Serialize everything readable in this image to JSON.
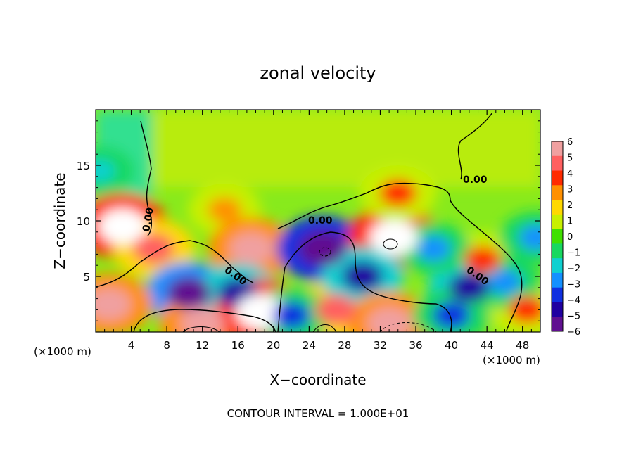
{
  "chart_data": {
    "type": "heatmap",
    "title": "zonal velocity",
    "xlabel": "X−coordinate",
    "ylabel": "Z−coordinate",
    "x_unit_label": "(×1000 m)",
    "z_unit_label": "(×1000 m)",
    "footer": "CONTOUR INTERVAL = 1.000E+01",
    "x_range": [
      0,
      50
    ],
    "z_range": [
      0,
      20
    ],
    "x_ticks": [
      "4",
      "8",
      "12",
      "16",
      "20",
      "24",
      "28",
      "32",
      "36",
      "40",
      "44",
      "48"
    ],
    "x_tick_values": [
      4,
      8,
      12,
      16,
      20,
      24,
      28,
      32,
      36,
      40,
      44,
      48
    ],
    "z_ticks": [
      "5",
      "10",
      "15"
    ],
    "z_tick_values": [
      5,
      10,
      15
    ],
    "colorbar": {
      "labels": [
        "6",
        "5",
        "4",
        "3",
        "2",
        "1",
        "0",
        "−1",
        "−2",
        "−3",
        "−4",
        "−5",
        "−6"
      ],
      "range": [
        -6,
        6
      ],
      "colors": [
        "#f0a0a0",
        "#ff6060",
        "#ff2a00",
        "#ff9000",
        "#ffd800",
        "#c8f000",
        "#40e000",
        "#18d860",
        "#10d0d0",
        "#1490ff",
        "#1030e0",
        "#2000a0",
        "#601090"
      ]
    },
    "contour_labels": [
      "0.00",
      "0.00",
      "0.00",
      "0.00",
      "0.00"
    ],
    "grid": false,
    "legend": "right colorbar",
    "features": [
      {
        "x": 3.0,
        "z": 9.5,
        "v": 7
      },
      {
        "x": 6.5,
        "z": 7.5,
        "v": 5
      },
      {
        "x": 10.5,
        "z": 3.5,
        "v": -6
      },
      {
        "x": 12,
        "z": 0.8,
        "v": 6
      },
      {
        "x": 14.5,
        "z": 11.0,
        "v": 3
      },
      {
        "x": 17.5,
        "z": 7.5,
        "v": 6
      },
      {
        "x": 16,
        "z": 3.5,
        "v": -5
      },
      {
        "x": 18.5,
        "z": 1.8,
        "v": 7
      },
      {
        "x": 25.5,
        "z": 7.5,
        "v": -7
      },
      {
        "x": 27,
        "z": 2.0,
        "v": 5
      },
      {
        "x": 33.5,
        "z": 8.5,
        "v": 7
      },
      {
        "x": 34,
        "z": 12.5,
        "v": 4
      },
      {
        "x": 30,
        "z": 5.0,
        "v": -5
      },
      {
        "x": 33,
        "z": 0.8,
        "v": 6
      },
      {
        "x": 1.5,
        "z": 2.5,
        "v": 6
      },
      {
        "x": 0.5,
        "z": 14.5,
        "v": -2
      },
      {
        "x": 43.5,
        "z": 6.5,
        "v": 4
      },
      {
        "x": 42,
        "z": 4.0,
        "v": -5
      },
      {
        "x": 38,
        "z": 7.5,
        "v": -3
      },
      {
        "x": 48.5,
        "z": 2.0,
        "v": 4
      },
      {
        "x": 46,
        "z": 4.5,
        "v": -3
      },
      {
        "x": 49.5,
        "z": 8.5,
        "v": -3
      },
      {
        "x": 22,
        "z": 1.5,
        "v": -4
      },
      {
        "x": 40,
        "z": 1.5,
        "v": -4
      }
    ]
  }
}
